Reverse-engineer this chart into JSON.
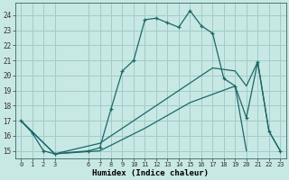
{
  "xlabel": "Humidex (Indice chaleur)",
  "bg_color": "#c8e8e4",
  "grid_color": "#a0ccca",
  "line_color": "#1a6868",
  "xlim": [
    -0.5,
    23.5
  ],
  "ylim": [
    14.5,
    24.8
  ],
  "xtick_pos": [
    0,
    1,
    2,
    3,
    6,
    7,
    8,
    9,
    10,
    11,
    12,
    13,
    14,
    15,
    16,
    17,
    18,
    19,
    20,
    21,
    22,
    23
  ],
  "xtick_labels": [
    "0",
    "1",
    "2",
    "3",
    "6",
    "7",
    "8",
    "9",
    "10",
    "11",
    "12",
    "13",
    "14",
    "15",
    "16",
    "17",
    "18",
    "19",
    "20",
    "21",
    "22",
    "23"
  ],
  "ytick_pos": [
    15,
    16,
    17,
    18,
    19,
    20,
    21,
    22,
    23,
    24
  ],
  "ytick_labels": [
    "15",
    "16",
    "17",
    "18",
    "19",
    "20",
    "21",
    "22",
    "23",
    "24"
  ],
  "curve1_x": [
    0,
    1,
    2,
    3,
    6,
    7,
    8,
    9,
    10,
    11,
    12,
    13,
    14,
    15,
    16,
    17,
    18,
    19,
    20,
    21,
    22,
    23
  ],
  "curve1_y": [
    17.0,
    16.2,
    15.0,
    14.8,
    15.0,
    15.2,
    17.8,
    20.3,
    21.0,
    23.7,
    23.8,
    23.5,
    23.2,
    24.3,
    23.3,
    22.8,
    19.8,
    19.3,
    17.2,
    20.9,
    16.3,
    15.0
  ],
  "curve2_x": [
    0,
    3,
    7,
    11,
    15,
    17,
    19,
    20,
    21,
    22,
    23
  ],
  "curve2_y": [
    17.0,
    14.8,
    15.5,
    17.5,
    19.5,
    20.5,
    20.3,
    19.3,
    20.9,
    16.3,
    15.0
  ],
  "curve3_x": [
    0,
    3,
    7,
    11,
    15,
    19,
    20
  ],
  "curve3_y": [
    17.0,
    14.8,
    15.0,
    16.5,
    18.2,
    19.3,
    15.0
  ]
}
